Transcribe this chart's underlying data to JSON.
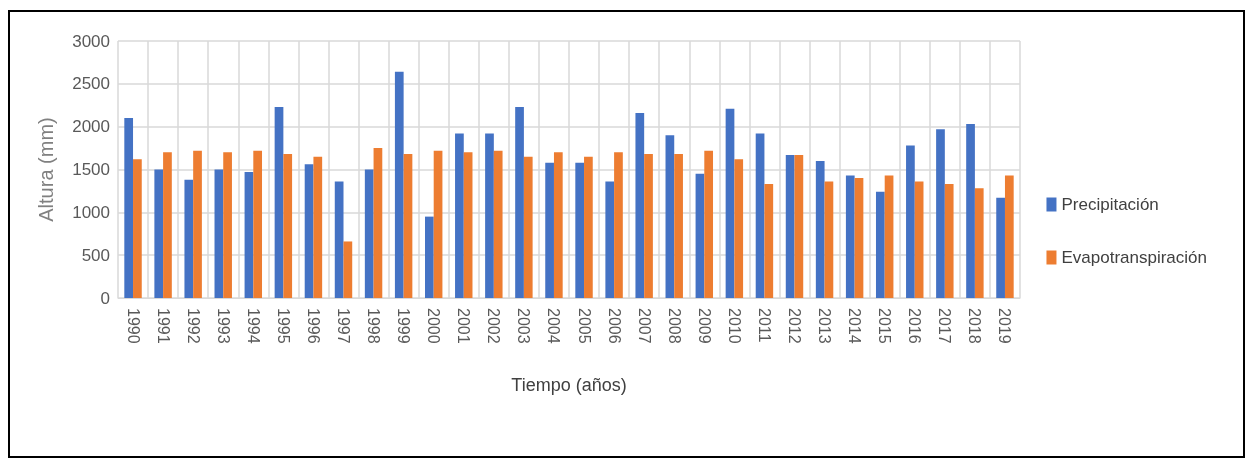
{
  "chart_data": {
    "type": "bar",
    "xlabel": "Tiempo (años)",
    "ylabel": "Altura (mm)",
    "categories": [
      "1990",
      "1991",
      "1992",
      "1993",
      "1994",
      "1995",
      "1996",
      "1997",
      "1998",
      "1999",
      "2000",
      "2001",
      "2002",
      "2003",
      "2004",
      "2005",
      "2006",
      "2007",
      "2008",
      "2009",
      "2010",
      "2011",
      "2012",
      "2013",
      "2014",
      "2015",
      "2016",
      "2017",
      "2018",
      "2019"
    ],
    "series": [
      {
        "name": "Precipitación",
        "color": "#4472c4",
        "values": [
          2100,
          1500,
          1380,
          1500,
          1470,
          2230,
          1560,
          1360,
          1500,
          2640,
          950,
          1920,
          1920,
          2230,
          1580,
          1580,
          1360,
          2160,
          1900,
          1450,
          2210,
          1920,
          1670,
          1600,
          1430,
          1240,
          1780,
          1970,
          2030,
          1170
        ]
      },
      {
        "name": "Evapotranspiración",
        "color": "#ed7d31",
        "values": [
          1620,
          1700,
          1720,
          1700,
          1720,
          1680,
          1650,
          660,
          1750,
          1680,
          1720,
          1700,
          1720,
          1650,
          1700,
          1650,
          1700,
          1680,
          1680,
          1720,
          1620,
          1330,
          1670,
          1360,
          1400,
          1430,
          1360,
          1330,
          1280,
          1430
        ]
      }
    ],
    "ylim": [
      0,
      3000
    ],
    "yticks": [
      0,
      500,
      1000,
      1500,
      2000,
      2500,
      3000
    ],
    "grid": true,
    "legend": "right"
  }
}
